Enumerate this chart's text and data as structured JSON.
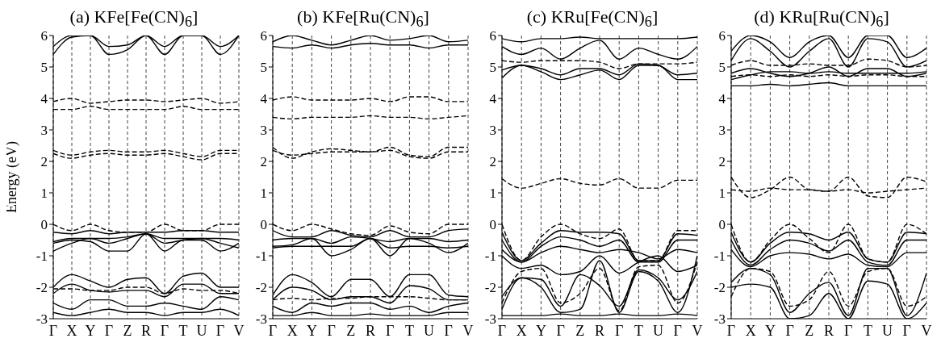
{
  "chart_data": [
    {
      "type": "line",
      "title": "(a) KFe[Fe(CN)$_{6}$]",
      "ylabel": "Energy (eV)",
      "categories": [
        "Γ",
        "X",
        "Y",
        "Γ",
        "Z",
        "R",
        "Γ",
        "T",
        "U",
        "Γ",
        "V"
      ],
      "ylim": [
        -3,
        6
      ],
      "yticks": [
        -3,
        -2,
        -1,
        0,
        1,
        2,
        3,
        4,
        5,
        6
      ],
      "grid": "x",
      "marker": "none",
      "series": [
        {
          "color": "#000000",
          "line_style": "solid",
          "values": [
            5.4,
            5.95,
            6,
            5.4,
            5.55,
            6,
            5.4,
            6,
            6,
            5.4,
            6
          ]
        },
        {
          "color": "#000000",
          "line_style": "solid",
          "values": [
            5.65,
            6,
            6,
            5.65,
            5.7,
            6,
            5.65,
            6,
            6,
            5.65,
            6
          ]
        },
        {
          "color": "#000000",
          "line_style": "dashed",
          "values": [
            3.9,
            4.0,
            3.85,
            3.9,
            3.95,
            3.95,
            3.9,
            3.95,
            4.0,
            3.85,
            3.9
          ]
        },
        {
          "color": "#000000",
          "line_style": "dashed",
          "values": [
            3.65,
            3.65,
            3.75,
            3.65,
            3.65,
            3.65,
            3.65,
            3.75,
            3.65,
            3.65,
            3.65
          ]
        },
        {
          "color": "#000000",
          "line_style": "dashed",
          "values": [
            2.35,
            2.2,
            2.3,
            2.35,
            2.3,
            2.3,
            2.35,
            2.25,
            2.15,
            2.35,
            2.35
          ]
        },
        {
          "color": "#000000",
          "line_style": "dashed",
          "values": [
            2.25,
            2.1,
            2.2,
            2.25,
            2.2,
            2.2,
            2.25,
            2.15,
            2.05,
            2.25,
            2.25
          ]
        },
        {
          "color": "#000000",
          "line_style": "dashed",
          "values": [
            0,
            -0.2,
            0,
            -0.2,
            -0.25,
            -0.25,
            0,
            -0.2,
            -0.2,
            0,
            0
          ]
        },
        {
          "color": "#000000",
          "line_style": "solid",
          "values": [
            -0.25,
            -0.3,
            -0.2,
            -0.3,
            -0.25,
            -0.25,
            -0.25,
            -0.2,
            -0.2,
            -0.25,
            -0.25
          ]
        },
        {
          "color": "#000000",
          "line_style": "solid",
          "values": [
            -0.55,
            -0.45,
            -0.45,
            -0.45,
            -0.4,
            -0.3,
            -0.45,
            -0.45,
            -0.45,
            -0.45,
            -0.5
          ]
        },
        {
          "color": "#000000",
          "line_style": "solid",
          "values": [
            -0.6,
            -0.5,
            -0.55,
            -0.85,
            -0.85,
            -0.3,
            -0.85,
            -0.5,
            -0.5,
            -0.85,
            -0.6
          ]
        },
        {
          "color": "#000000",
          "line_style": "solid",
          "values": [
            -0.85,
            -0.6,
            -0.45,
            -0.6,
            -0.45,
            -0.3,
            -0.6,
            -0.5,
            -0.45,
            -0.6,
            -0.75
          ]
        },
        {
          "color": "#000000",
          "line_style": "solid",
          "values": [
            -2.0,
            -1.6,
            -1.8,
            -2.0,
            -1.75,
            -1.7,
            -2.2,
            -1.65,
            -1.55,
            -2.0,
            -2.0
          ]
        },
        {
          "color": "#000000",
          "line_style": "solid",
          "values": [
            -2.2,
            -1.9,
            -2.1,
            -2.15,
            -2.1,
            -2.1,
            -2.3,
            -1.9,
            -1.9,
            -2.2,
            -2.2
          ]
        },
        {
          "color": "#000000",
          "line_style": "dashed",
          "values": [
            -2.05,
            -2.05,
            -2.1,
            -2.1,
            -2.0,
            -2.0,
            -2.2,
            -2.05,
            -2.1,
            -2.1,
            -2.2
          ]
        },
        {
          "color": "#000000",
          "line_style": "solid",
          "values": [
            -2.5,
            -2.7,
            -2.4,
            -2.4,
            -2.6,
            -2.6,
            -2.5,
            -2.6,
            -2.7,
            -2.3,
            -2.4
          ]
        },
        {
          "color": "#000000",
          "line_style": "solid",
          "values": [
            -2.8,
            -2.9,
            -2.8,
            -2.7,
            -2.8,
            -2.8,
            -2.9,
            -2.8,
            -2.8,
            -2.7,
            -2.9
          ]
        }
      ]
    },
    {
      "type": "line",
      "title": "(b) KFe[Ru(CN)$_{6}$]",
      "categories": [
        "Γ",
        "X",
        "Y",
        "Γ",
        "Z",
        "R",
        "Γ",
        "T",
        "U",
        "Γ",
        "V"
      ],
      "ylim": [
        -3,
        6
      ],
      "yticks": [
        -3,
        -2,
        -1,
        0,
        1,
        2,
        3,
        4,
        5,
        6
      ],
      "grid": "x",
      "marker": "none",
      "series": [
        {
          "color": "#000000",
          "line_style": "solid",
          "values": [
            5.65,
            5.6,
            5.7,
            5.6,
            5.7,
            5.75,
            5.7,
            5.7,
            5.6,
            5.7,
            5.7
          ]
        },
        {
          "color": "#000000",
          "line_style": "solid",
          "values": [
            5.8,
            6,
            5.85,
            5.7,
            5.85,
            6,
            5.85,
            5.9,
            6,
            5.8,
            5.85
          ]
        },
        {
          "color": "#000000",
          "line_style": "dashed",
          "values": [
            3.95,
            4.05,
            3.95,
            3.95,
            3.95,
            4.0,
            3.9,
            4.05,
            4.05,
            3.9,
            3.9
          ]
        },
        {
          "color": "#000000",
          "line_style": "dashed",
          "values": [
            3.4,
            3.35,
            3.4,
            3.4,
            3.4,
            3.45,
            3.4,
            3.4,
            3.35,
            3.4,
            3.45
          ]
        },
        {
          "color": "#000000",
          "line_style": "dashed",
          "values": [
            2.45,
            2.1,
            2.3,
            2.4,
            2.35,
            2.3,
            2.45,
            2.2,
            2.15,
            2.45,
            2.45
          ]
        },
        {
          "color": "#000000",
          "line_style": "dashed",
          "values": [
            2.35,
            2.2,
            2.25,
            2.3,
            2.3,
            2.3,
            2.35,
            2.15,
            2.1,
            2.3,
            2.3
          ]
        },
        {
          "color": "#000000",
          "line_style": "dashed",
          "values": [
            0,
            -0.2,
            0,
            -0.15,
            -0.3,
            -0.35,
            -0.05,
            -0.25,
            -0.3,
            0,
            0
          ]
        },
        {
          "color": "#000000",
          "line_style": "solid",
          "values": [
            -0.2,
            -0.4,
            -0.4,
            -0.2,
            -0.35,
            -0.4,
            -0.2,
            -0.4,
            -0.4,
            -0.2,
            -0.15
          ]
        },
        {
          "color": "#000000",
          "line_style": "solid",
          "values": [
            -0.5,
            -0.45,
            -0.45,
            -0.6,
            -0.4,
            -0.45,
            -0.55,
            -0.45,
            -0.45,
            -0.55,
            -0.5
          ]
        },
        {
          "color": "#000000",
          "line_style": "solid",
          "values": [
            -0.7,
            -0.65,
            -0.45,
            -1.0,
            -0.8,
            -0.45,
            -1.0,
            -0.45,
            -0.6,
            -0.9,
            -0.6
          ]
        },
        {
          "color": "#000000",
          "line_style": "solid",
          "values": [
            -0.75,
            -0.7,
            -0.7,
            -0.7,
            -0.7,
            -0.45,
            -0.75,
            -0.7,
            -0.7,
            -0.75,
            -0.7
          ]
        },
        {
          "color": "#000000",
          "line_style": "solid",
          "values": [
            -2.25,
            -1.6,
            -1.85,
            -2.3,
            -1.75,
            -1.75,
            -2.3,
            -1.6,
            -1.6,
            -2.25,
            -2.3
          ]
        },
        {
          "color": "#000000",
          "line_style": "solid",
          "values": [
            -2.4,
            -2.0,
            -2.1,
            -2.4,
            -2.3,
            -2.3,
            -2.5,
            -1.95,
            -2.05,
            -2.4,
            -2.4
          ]
        },
        {
          "color": "#000000",
          "line_style": "dashed",
          "values": [
            -2.4,
            -2.35,
            -2.4,
            -2.35,
            -2.35,
            -2.3,
            -2.3,
            -2.3,
            -2.35,
            -2.4,
            -2.4
          ]
        },
        {
          "color": "#000000",
          "line_style": "solid",
          "values": [
            -2.6,
            -2.8,
            -2.5,
            -2.6,
            -2.5,
            -2.5,
            -2.7,
            -2.6,
            -2.8,
            -2.6,
            -2.5
          ]
        },
        {
          "color": "#000000",
          "line_style": "solid",
          "values": [
            -2.9,
            -2.9,
            -2.8,
            -2.9,
            -2.9,
            -2.85,
            -2.9,
            -2.9,
            -2.9,
            -2.8,
            -2.8
          ]
        }
      ]
    },
    {
      "type": "line",
      "title": "(c) KRu[Fe(CN)$_{6}$]",
      "categories": [
        "Γ",
        "X",
        "Y",
        "Γ",
        "Z",
        "R",
        "Γ",
        "T",
        "U",
        "Γ",
        "V"
      ],
      "ylim": [
        -3,
        6
      ],
      "yticks": [
        -3,
        -2,
        -1,
        0,
        1,
        2,
        3,
        4,
        5,
        6
      ],
      "grid": "x",
      "marker": "none",
      "series": [
        {
          "color": "#000000",
          "line_style": "solid",
          "values": [
            4.65,
            5.05,
            4.85,
            4.6,
            4.75,
            4.9,
            4.6,
            5.05,
            5.05,
            4.6,
            4.6
          ]
        },
        {
          "color": "#000000",
          "line_style": "solid",
          "values": [
            4.9,
            5.05,
            4.95,
            4.75,
            4.95,
            4.95,
            4.75,
            5.1,
            5.05,
            4.75,
            4.8
          ]
        },
        {
          "color": "#000000",
          "line_style": "solid",
          "values": [
            5.65,
            5.4,
            5.6,
            5.25,
            5.6,
            5.85,
            5.25,
            5.6,
            5.4,
            5.25,
            5.65
          ]
        },
        {
          "color": "#000000",
          "line_style": "solid",
          "values": [
            5.9,
            5.8,
            5.9,
            5.9,
            5.95,
            5.9,
            5.9,
            5.9,
            5.9,
            5.9,
            5.95
          ]
        },
        {
          "color": "#000000",
          "line_style": "dashed",
          "values": [
            5.2,
            5.15,
            5.2,
            5.2,
            5.2,
            5.15,
            4.95,
            5.1,
            5.1,
            5.1,
            5.15
          ]
        },
        {
          "color": "#000000",
          "line_style": "dashed",
          "values": [
            1.45,
            1.15,
            1.3,
            1.45,
            1.3,
            1.25,
            1.45,
            1.15,
            1.15,
            1.4,
            1.4
          ]
        },
        {
          "color": "#000000",
          "line_style": "dashed",
          "values": [
            0,
            -1.15,
            -0.4,
            0,
            -0.3,
            -0.45,
            -0.15,
            -1.15,
            -1.15,
            -0.2,
            -0.2
          ]
        },
        {
          "color": "#000000",
          "line_style": "solid",
          "values": [
            -0.25,
            -1.15,
            -0.6,
            -0.2,
            -0.25,
            -0.25,
            -0.3,
            -1.15,
            -1.15,
            -0.3,
            -0.35
          ]
        },
        {
          "color": "#000000",
          "line_style": "solid",
          "values": [
            -0.5,
            -1.2,
            -0.7,
            -0.4,
            -0.5,
            -0.7,
            -0.5,
            -1.2,
            -1.2,
            -0.5,
            -0.5
          ]
        },
        {
          "color": "#000000",
          "line_style": "solid",
          "values": [
            -0.8,
            -1.2,
            -0.9,
            -0.7,
            -0.8,
            -0.9,
            -0.8,
            -0.9,
            -1.1,
            -0.8,
            -0.9
          ]
        },
        {
          "color": "#000000",
          "line_style": "solid",
          "values": [
            -1.0,
            -1.4,
            -1.3,
            -1.6,
            -1.5,
            -1.0,
            -1.55,
            -1.2,
            -1.0,
            -1.5,
            -1.3
          ]
        },
        {
          "color": "#000000",
          "line_style": "solid",
          "values": [
            -2.3,
            -1.7,
            -1.75,
            -2.6,
            -1.6,
            -1.95,
            -2.6,
            -1.45,
            -1.7,
            -2.4,
            -1.5
          ]
        },
        {
          "color": "#000000",
          "line_style": "solid",
          "values": [
            -2.7,
            -1.7,
            -2.0,
            -2.8,
            -2.7,
            -1.15,
            -2.8,
            -1.5,
            -1.8,
            -2.8,
            -1.0
          ]
        },
        {
          "color": "#000000",
          "line_style": "dashed",
          "values": [
            -2.5,
            -1.5,
            -1.4,
            -2.5,
            -2.2,
            -1.4,
            -2.75,
            -1.35,
            -1.3,
            -2.5,
            -1.2
          ]
        },
        {
          "color": "#000000",
          "line_style": "solid",
          "values": [
            -2.9,
            -2.9,
            -2.9,
            -2.85,
            -2.9,
            -2.9,
            -2.85,
            -2.9,
            -2.9,
            -2.85,
            -2.9
          ]
        }
      ]
    },
    {
      "type": "line",
      "title": "(d) KRu[Ru(CN)$_{6}$]",
      "categories": [
        "Γ",
        "X",
        "Y",
        "Γ",
        "Z",
        "R",
        "Γ",
        "T",
        "U",
        "Γ",
        "V"
      ],
      "ylim": [
        -3,
        6
      ],
      "yticks": [
        -3,
        -2,
        -1,
        0,
        1,
        2,
        3,
        4,
        5,
        6
      ],
      "grid": "x",
      "marker": "none",
      "series": [
        {
          "color": "#000000",
          "line_style": "solid",
          "values": [
            4.4,
            4.4,
            4.45,
            4.4,
            4.45,
            4.5,
            4.4,
            4.4,
            4.4,
            4.4,
            4.4
          ]
        },
        {
          "color": "#000000",
          "line_style": "solid",
          "values": [
            4.6,
            4.75,
            4.85,
            4.85,
            4.8,
            4.85,
            4.8,
            4.8,
            4.8,
            4.8,
            4.85
          ]
        },
        {
          "color": "#000000",
          "line_style": "solid",
          "values": [
            4.8,
            4.95,
            4.8,
            4.7,
            4.8,
            5.0,
            4.7,
            4.95,
            4.95,
            4.7,
            4.8
          ]
        },
        {
          "color": "#000000",
          "line_style": "solid",
          "values": [
            5.2,
            5.9,
            5.5,
            5.0,
            5.5,
            5.9,
            5.0,
            5.9,
            5.8,
            5.0,
            5.2
          ]
        },
        {
          "color": "#000000",
          "line_style": "solid",
          "values": [
            5.5,
            6,
            5.8,
            5.3,
            5.8,
            6,
            5.3,
            6,
            6,
            5.3,
            5.6
          ]
        },
        {
          "color": "#000000",
          "line_style": "dashed",
          "values": [
            4.7,
            4.75,
            4.7,
            4.75,
            4.7,
            4.75,
            4.7,
            4.75,
            4.75,
            4.7,
            4.7
          ]
        },
        {
          "color": "#000000",
          "line_style": "dashed",
          "values": [
            5.05,
            5.2,
            5.05,
            5.05,
            5.1,
            5.05,
            5.05,
            5.25,
            5.2,
            5.0,
            5.05
          ]
        },
        {
          "color": "#000000",
          "line_style": "dashed",
          "values": [
            1.5,
            0.85,
            1.1,
            1.5,
            1.1,
            1.05,
            1.5,
            0.9,
            0.85,
            1.5,
            1.35
          ]
        },
        {
          "color": "#000000",
          "line_style": "dashed",
          "values": [
            1.1,
            1.05,
            1.15,
            1.1,
            1.1,
            1.05,
            1.1,
            1.0,
            1.05,
            1.1,
            1.15
          ]
        },
        {
          "color": "#000000",
          "line_style": "dashed",
          "values": [
            0,
            -1.2,
            -0.5,
            0,
            -0.45,
            -0.9,
            0,
            -1.1,
            -1.2,
            0,
            -0.3
          ]
        },
        {
          "color": "#000000",
          "line_style": "solid",
          "values": [
            -0.25,
            -1.2,
            -0.6,
            -0.25,
            -0.3,
            -0.5,
            -0.25,
            -1.1,
            -1.2,
            -0.25,
            -0.3
          ]
        },
        {
          "color": "#000000",
          "line_style": "solid",
          "values": [
            -0.5,
            -1.3,
            -0.8,
            -0.5,
            -0.6,
            -0.85,
            -0.5,
            -1.2,
            -1.3,
            -0.5,
            -0.5
          ]
        },
        {
          "color": "#000000",
          "line_style": "solid",
          "values": [
            -0.8,
            -1.35,
            -1.0,
            -0.9,
            -0.95,
            -1.1,
            -0.95,
            -1.3,
            -1.35,
            -0.9,
            -0.9
          ]
        },
        {
          "color": "#000000",
          "line_style": "solid",
          "values": [
            -1.85,
            -1.4,
            -1.6,
            -2.8,
            -2.2,
            -1.85,
            -2.9,
            -1.4,
            -1.4,
            -2.9,
            -1.55
          ]
        },
        {
          "color": "#000000",
          "line_style": "solid",
          "values": [
            -2.0,
            -1.9,
            -2.0,
            -3.0,
            -2.9,
            -2.2,
            -3.0,
            -1.8,
            -1.9,
            -3.0,
            -2.5
          ]
        },
        {
          "color": "#000000",
          "line_style": "dashed",
          "values": [
            -2.3,
            -1.4,
            -1.5,
            -2.6,
            -2.4,
            -1.5,
            -2.6,
            -1.5,
            -1.4,
            -2.6,
            -2.3
          ]
        }
      ]
    }
  ]
}
